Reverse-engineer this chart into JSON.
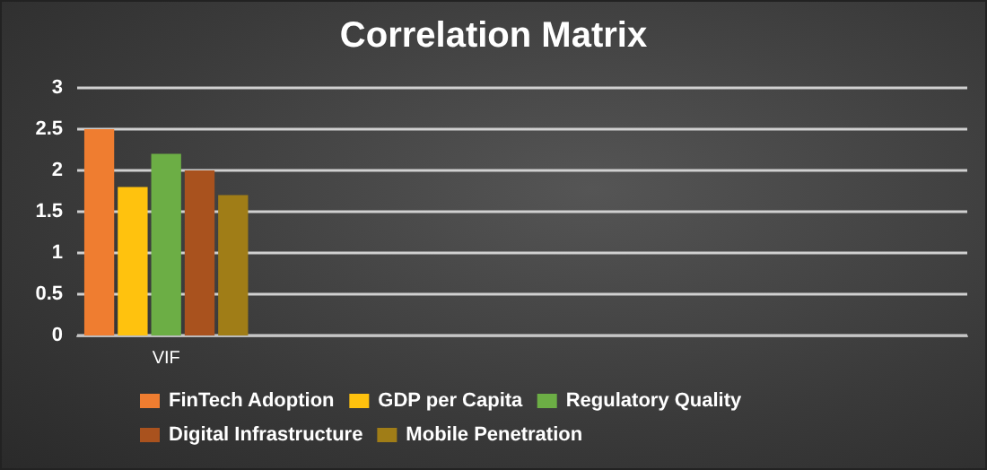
{
  "chart_data": {
    "type": "bar",
    "title": "Correlation Matrix",
    "categories": [
      "VIF",
      null,
      null,
      null,
      null
    ],
    "series": [
      {
        "name": "FinTech Adoption",
        "color": "#ef7d30",
        "values": [
          2.5,
          null,
          null,
          null,
          null
        ]
      },
      {
        "name": "GDP per Capita",
        "color": "#ffc20e",
        "values": [
          1.8,
          null,
          null,
          null,
          null
        ]
      },
      {
        "name": "Regulatory Quality",
        "color": "#6cae45",
        "values": [
          2.2,
          null,
          null,
          null,
          null
        ]
      },
      {
        "name": "Digital Infrastructure",
        "color": "#a9521e",
        "values": [
          2.0,
          null,
          null,
          null,
          null
        ]
      },
      {
        "name": "Mobile Penetration",
        "color": "#a07d17",
        "values": [
          1.7,
          null,
          null,
          null,
          null
        ]
      }
    ],
    "ylim": [
      0,
      3
    ],
    "yticks": [
      0,
      0.5,
      1,
      1.5,
      2,
      2.5,
      3
    ],
    "grid": "y",
    "legend": "bottom"
  }
}
